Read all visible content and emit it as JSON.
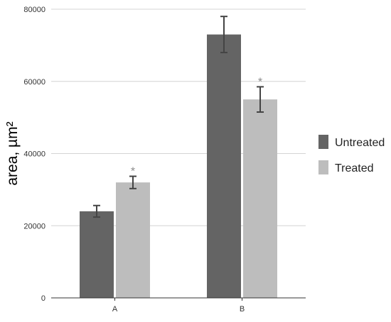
{
  "chart_data": {
    "type": "bar",
    "categories": [
      "A",
      "B"
    ],
    "series": [
      {
        "name": "Untreated",
        "color": "#646464",
        "values": [
          24000,
          73000
        ],
        "errors": [
          1600,
          5000
        ]
      },
      {
        "name": "Treated",
        "color": "#bdbdbd",
        "values": [
          32000,
          55000
        ],
        "errors": [
          1700,
          3500
        ]
      }
    ],
    "significance_markers": [
      {
        "category": "A",
        "series": "Treated",
        "symbol": "*"
      },
      {
        "category": "B",
        "series": "Treated",
        "symbol": "*"
      }
    ],
    "title": "",
    "xlabel": "",
    "ylabel": "area, µm²",
    "ylim": [
      0,
      80000
    ],
    "yticks": [
      0,
      20000,
      40000,
      60000,
      80000
    ],
    "grid": true,
    "legend_position": "right"
  }
}
